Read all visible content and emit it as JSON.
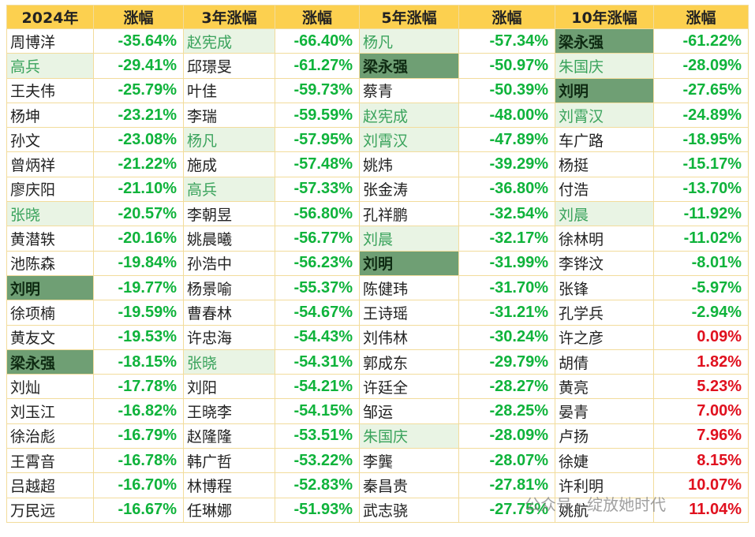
{
  "table": {
    "header": [
      "2024年",
      "涨幅",
      "3年涨幅",
      "涨幅",
      "5年涨幅",
      "涨幅",
      "10年涨幅",
      "涨幅"
    ],
    "rows": [
      [
        "周博洋",
        "-35.64%",
        "赵宪成",
        "-66.40%",
        "杨凡",
        "-57.34%",
        "梁永强",
        "-61.22%"
      ],
      [
        "高兵",
        "-29.41%",
        "邱璟旻",
        "-61.27%",
        "梁永强",
        "-50.97%",
        "朱国庆",
        "-28.09%"
      ],
      [
        "王夫伟",
        "-25.79%",
        "叶佳",
        "-59.73%",
        "蔡青",
        "-50.39%",
        "刘明",
        "-27.65%"
      ],
      [
        "杨坤",
        "-23.21%",
        "李瑞",
        "-59.59%",
        "赵宪成",
        "-48.00%",
        "刘霄汉",
        "-24.89%"
      ],
      [
        "孙文",
        "-23.08%",
        "杨凡",
        "-57.95%",
        "刘霄汉",
        "-47.89%",
        "车广路",
        "-18.95%"
      ],
      [
        "曾炳祥",
        "-21.22%",
        "施成",
        "-57.48%",
        "姚炜",
        "-39.29%",
        "杨挺",
        "-15.17%"
      ],
      [
        "廖庆阳",
        "-21.10%",
        "高兵",
        "-57.33%",
        "张金涛",
        "-36.80%",
        "付浩",
        "-13.70%"
      ],
      [
        "张晓",
        "-20.57%",
        "李朝昱",
        "-56.80%",
        "孔祥鹏",
        "-32.54%",
        "刘晨",
        "-11.92%"
      ],
      [
        "黄潜轶",
        "-20.16%",
        "姚晨曦",
        "-56.77%",
        "刘晨",
        "-32.17%",
        "徐林明",
        "-11.02%"
      ],
      [
        "池陈森",
        "-19.84%",
        "孙浩中",
        "-56.23%",
        "刘明",
        "-31.99%",
        "李铧汶",
        "-8.01%"
      ],
      [
        "刘明",
        "-19.77%",
        "杨景喻",
        "-55.37%",
        "陈健玮",
        "-31.70%",
        "张锋",
        "-5.97%"
      ],
      [
        "徐项楠",
        "-19.59%",
        "曹春林",
        "-54.67%",
        "王诗瑶",
        "-31.21%",
        "孔学兵",
        "-2.94%"
      ],
      [
        "黄友文",
        "-19.53%",
        "许忠海",
        "-54.43%",
        "刘伟林",
        "-30.24%",
        "许之彦",
        "0.09%"
      ],
      [
        "梁永强",
        "-18.15%",
        "张晓",
        "-54.31%",
        "郭成东",
        "-29.79%",
        "胡倩",
        "1.82%"
      ],
      [
        "刘灿",
        "-17.78%",
        "刘阳",
        "-54.21%",
        "许廷全",
        "-28.27%",
        "黄亮",
        "5.23%"
      ],
      [
        "刘玉江",
        "-16.82%",
        "王晓李",
        "-54.15%",
        "邹运",
        "-28.25%",
        "晏青",
        "7.00%"
      ],
      [
        "徐治彪",
        "-16.79%",
        "赵隆隆",
        "-53.51%",
        "朱国庆",
        "-28.09%",
        "卢扬",
        "7.96%"
      ],
      [
        "王霄音",
        "-16.78%",
        "韩广哲",
        "-53.22%",
        "李龔",
        "-28.07%",
        "徐婕",
        "8.15%"
      ],
      [
        "吕越超",
        "-16.70%",
        "林博程",
        "-52.83%",
        "秦昌贵",
        "-27.81%",
        "许利明",
        "10.07%"
      ],
      [
        "万民远",
        "-16.67%",
        "任琳娜",
        "-51.93%",
        "武志骁",
        "-27.75%",
        "姚航",
        "11.04%"
      ]
    ],
    "light_highlight": [
      [
        1,
        0
      ],
      [
        7,
        0
      ],
      [
        0,
        2
      ],
      [
        4,
        2
      ],
      [
        6,
        2
      ],
      [
        13,
        2
      ],
      [
        0,
        4
      ],
      [
        3,
        4
      ],
      [
        4,
        4
      ],
      [
        8,
        4
      ],
      [
        16,
        4
      ],
      [
        1,
        6
      ],
      [
        3,
        6
      ],
      [
        7,
        6
      ]
    ],
    "dark_highlight": [
      [
        10,
        0
      ],
      [
        13,
        0
      ],
      [
        1,
        4
      ],
      [
        9,
        4
      ],
      [
        0,
        6
      ],
      [
        2,
        6
      ]
    ]
  },
  "watermark": "公众号 · 绽放她时代"
}
